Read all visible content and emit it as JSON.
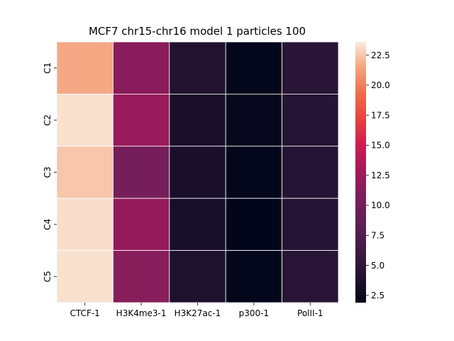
{
  "chart_data": {
    "type": "heatmap",
    "title": "MCF7 chr15-chr16 model 1 particles 100",
    "xlabel": "",
    "ylabel": "",
    "columns": [
      "CTCF-1",
      "H3K4me3-1",
      "H3K27ac-1",
      "p300-1",
      "PolII-1"
    ],
    "rows": [
      "C1",
      "C2",
      "C3",
      "C4",
      "C5"
    ],
    "values": [
      [
        21.6,
        11.4,
        4.0,
        2.0,
        4.6
      ],
      [
        23.3,
        12.3,
        3.5,
        2.1,
        4.3
      ],
      [
        22.5,
        10.2,
        3.5,
        2.0,
        4.4
      ],
      [
        23.2,
        12.0,
        3.4,
        1.9,
        4.3
      ],
      [
        23.3,
        11.3,
        3.8,
        2.0,
        4.5
      ]
    ],
    "colorbar": {
      "min": 1.9,
      "max": 23.6,
      "ticks": [
        "2.5",
        "5.0",
        "7.5",
        "10.0",
        "12.5",
        "15.0",
        "17.5",
        "20.0",
        "22.5"
      ],
      "colormap": "rocket"
    },
    "cell_lines": "white",
    "grid": false
  }
}
